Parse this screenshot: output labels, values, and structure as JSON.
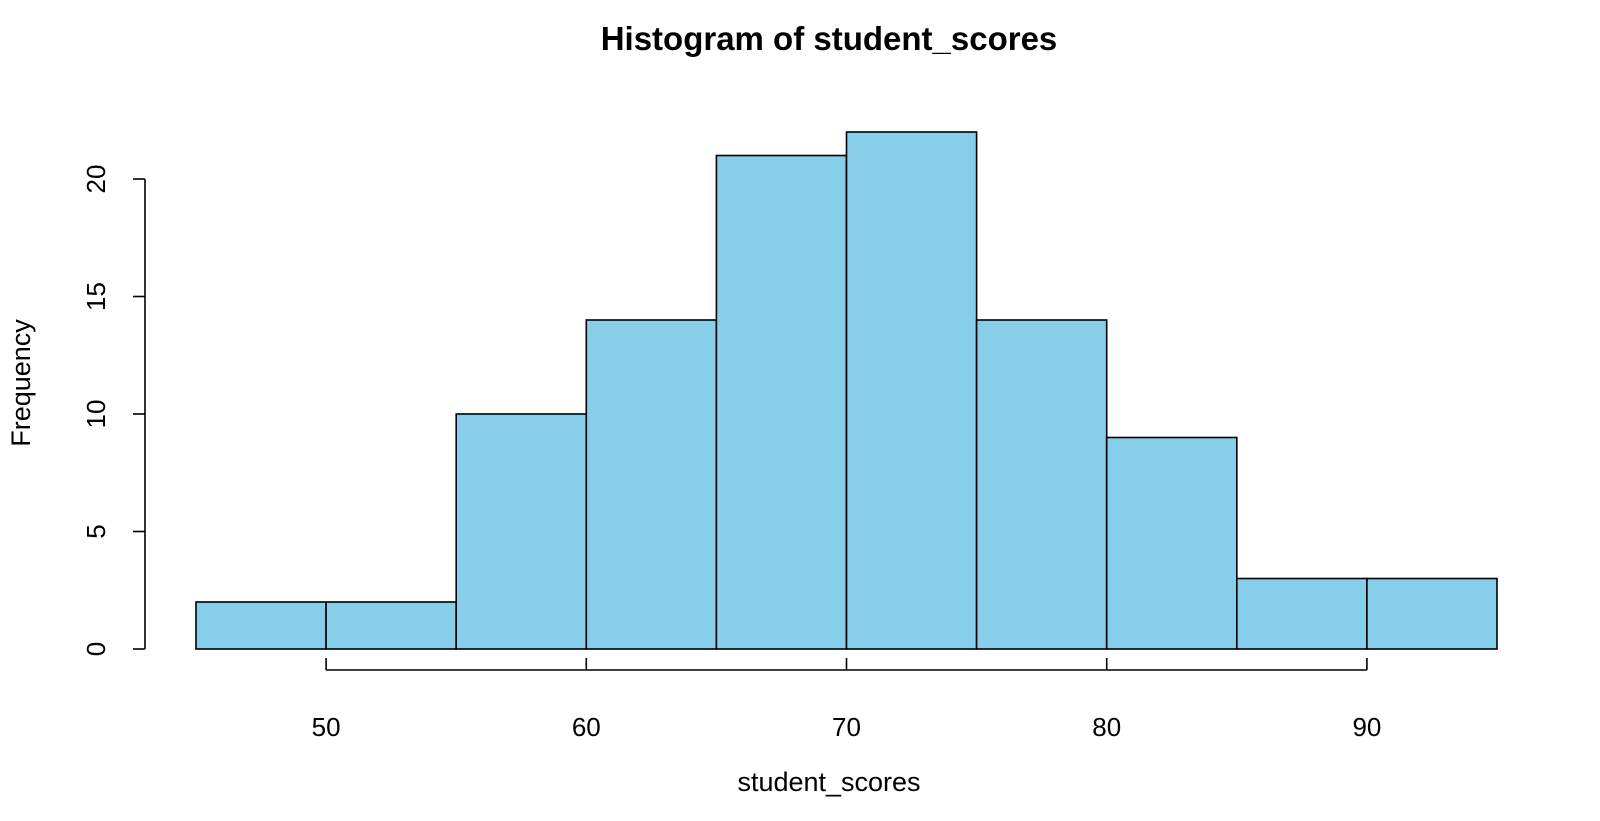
{
  "chart_data": {
    "type": "bar",
    "title": "Histogram of student_scores",
    "xlabel": "student_scores",
    "ylabel": "Frequency",
    "bin_edges": [
      45,
      50,
      55,
      60,
      65,
      70,
      75,
      80,
      85,
      90,
      95
    ],
    "values": [
      2,
      2,
      10,
      14,
      21,
      22,
      14,
      9,
      3,
      3
    ],
    "xlim": [
      45,
      95
    ],
    "ylim": [
      0,
      22
    ],
    "x_ticks": [
      50,
      60,
      70,
      80,
      90
    ],
    "y_ticks": [
      0,
      5,
      10,
      15,
      20
    ],
    "grid": false,
    "bar_color": "#87ceeb",
    "bar_border_color": "#000000"
  }
}
